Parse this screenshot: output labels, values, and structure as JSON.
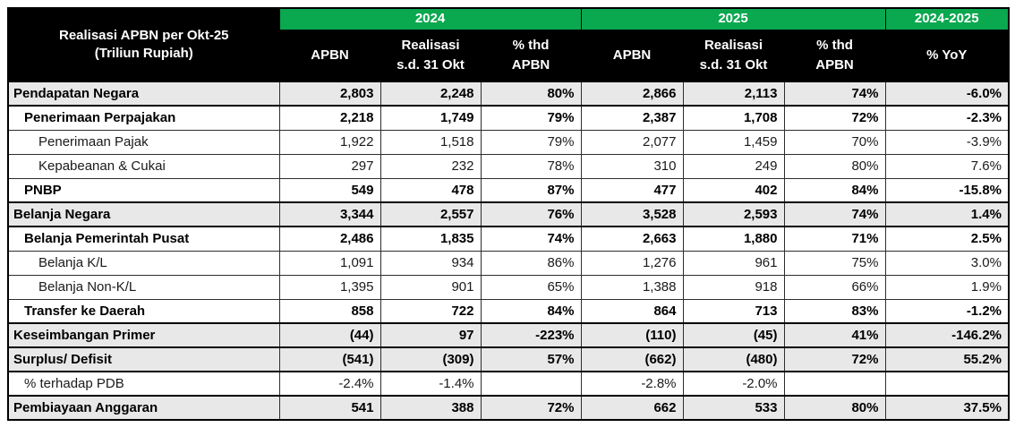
{
  "table": {
    "title_line1": "Realisasi APBN per Okt-25",
    "title_line2": "(Triliun Rupiah)",
    "year_groups": [
      "2024",
      "2025",
      "2024-2025"
    ],
    "subheaders": {
      "apbn": "APBN",
      "realisasi_line1": "Realisasi",
      "realisasi_line2": "s.d. 31 Okt",
      "pct_line1": "% thd",
      "pct_line2": "APBN",
      "yoy": "% YoY"
    },
    "columns": [
      "APBN 2024",
      "Realisasi s.d. 31 Okt 2024",
      "% thd APBN 2024",
      "APBN 2025",
      "Realisasi s.d. 31 Okt 2025",
      "% thd APBN 2025",
      "% YoY"
    ],
    "rows": [
      {
        "label": "Pendapatan Negara",
        "indent": 0,
        "bold": true,
        "shaded": true,
        "values": [
          "2,803",
          "2,248",
          "80%",
          "2,866",
          "2,113",
          "74%",
          "-6.0%"
        ]
      },
      {
        "label": "Penerimaan Perpajakan",
        "indent": 1,
        "bold": true,
        "shaded": false,
        "values": [
          "2,218",
          "1,749",
          "79%",
          "2,387",
          "1,708",
          "72%",
          "-2.3%"
        ]
      },
      {
        "label": "Penerimaan Pajak",
        "indent": 2,
        "bold": false,
        "shaded": false,
        "values": [
          "1,922",
          "1,518",
          "79%",
          "2,077",
          "1,459",
          "70%",
          "-3.9%"
        ]
      },
      {
        "label": "Kepabeanan & Cukai",
        "indent": 2,
        "bold": false,
        "shaded": false,
        "values": [
          "297",
          "232",
          "78%",
          "310",
          "249",
          "80%",
          "7.6%"
        ]
      },
      {
        "label": "PNBP",
        "indent": 1,
        "bold": true,
        "shaded": false,
        "values": [
          "549",
          "478",
          "87%",
          "477",
          "402",
          "84%",
          "-15.8%"
        ]
      },
      {
        "label": "Belanja Negara",
        "indent": 0,
        "bold": true,
        "shaded": true,
        "values": [
          "3,344",
          "2,557",
          "76%",
          "3,528",
          "2,593",
          "74%",
          "1.4%"
        ]
      },
      {
        "label": "Belanja Pemerintah Pusat",
        "indent": 1,
        "bold": true,
        "shaded": false,
        "values": [
          "2,486",
          "1,835",
          "74%",
          "2,663",
          "1,880",
          "71%",
          "2.5%"
        ]
      },
      {
        "label": "Belanja K/L",
        "indent": 2,
        "bold": false,
        "shaded": false,
        "values": [
          "1,091",
          "934",
          "86%",
          "1,276",
          "961",
          "75%",
          "3.0%"
        ]
      },
      {
        "label": "Belanja Non-K/L",
        "indent": 2,
        "bold": false,
        "shaded": false,
        "values": [
          "1,395",
          "901",
          "65%",
          "1,388",
          "918",
          "66%",
          "1.9%"
        ]
      },
      {
        "label": "Transfer ke Daerah",
        "indent": 1,
        "bold": true,
        "shaded": false,
        "values": [
          "858",
          "722",
          "84%",
          "864",
          "713",
          "83%",
          "-1.2%"
        ]
      },
      {
        "label": "Keseimbangan Primer",
        "indent": 0,
        "bold": true,
        "shaded": true,
        "values": [
          "(44)",
          "97",
          "-223%",
          "(110)",
          "(45)",
          "41%",
          "-146.2%"
        ]
      },
      {
        "label": "Surplus/ Defisit",
        "indent": 0,
        "bold": true,
        "shaded": true,
        "values": [
          "(541)",
          "(309)",
          "57%",
          "(662)",
          "(480)",
          "72%",
          "55.2%"
        ]
      },
      {
        "label": "% terhadap PDB",
        "indent": 1,
        "bold": false,
        "shaded": false,
        "values": [
          "-2.4%",
          "-1.4%",
          "",
          "-2.8%",
          "-2.0%",
          "",
          ""
        ]
      },
      {
        "label": "Pembiayaan Anggaran",
        "indent": 0,
        "bold": true,
        "shaded": true,
        "values": [
          "541",
          "388",
          "72%",
          "662",
          "533",
          "80%",
          "37.5%"
        ]
      }
    ]
  },
  "colors": {
    "header_bg": "#000000",
    "header_text": "#FFFFFF",
    "year_band_green": "#0AA84F",
    "shaded_row_bg": "#E8E8E8",
    "border": "#2E2E2E"
  }
}
